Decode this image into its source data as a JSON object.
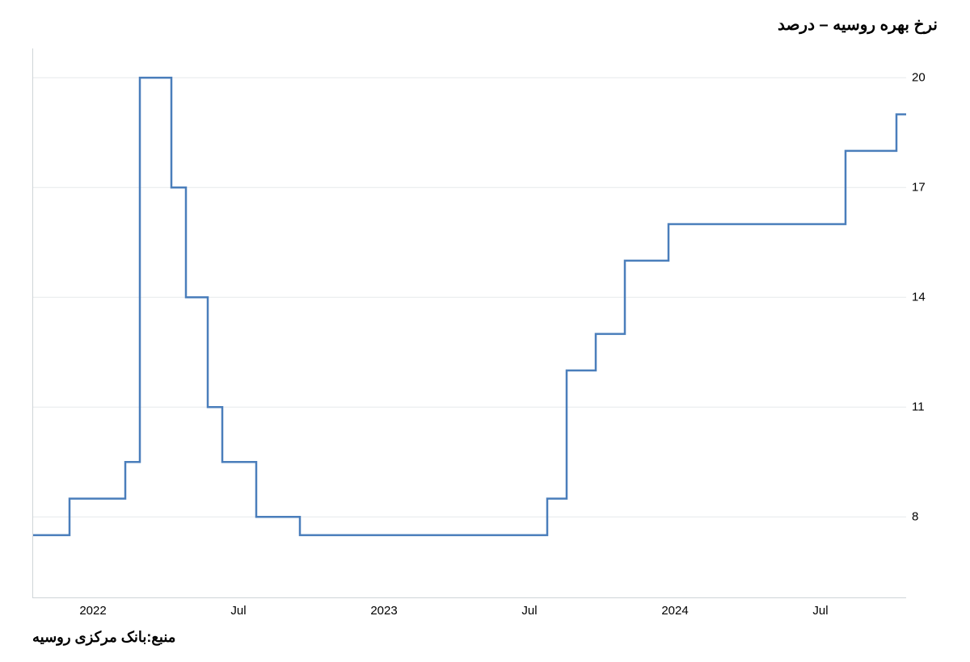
{
  "title": "نرخ بهره روسیه – درصد",
  "source": "منبع:بانک مرکزی روسیه",
  "chart": {
    "type": "step-line",
    "line_color": "#4a7ebb",
    "line_width": 2.5,
    "background_color": "#ffffff",
    "grid_color": "#e6e9eb",
    "axis_color": "#cfd4d8",
    "ylim": [
      5.8,
      20.8
    ],
    "xlim": [
      0,
      36
    ],
    "yticks": [
      8,
      11,
      14,
      17,
      20
    ],
    "xticks": [
      {
        "pos": 2.5,
        "label": "2022"
      },
      {
        "pos": 8.5,
        "label": "Jul"
      },
      {
        "pos": 14.5,
        "label": "2023"
      },
      {
        "pos": 20.5,
        "label": "Jul"
      },
      {
        "pos": 26.5,
        "label": "2024"
      },
      {
        "pos": 32.5,
        "label": "Jul"
      }
    ],
    "data": [
      {
        "x": 0,
        "y": 7.5
      },
      {
        "x": 1.5,
        "y": 7.5
      },
      {
        "x": 1.5,
        "y": 8.5
      },
      {
        "x": 3.8,
        "y": 8.5
      },
      {
        "x": 3.8,
        "y": 9.5
      },
      {
        "x": 4.4,
        "y": 9.5
      },
      {
        "x": 4.4,
        "y": 20
      },
      {
        "x": 5.7,
        "y": 20
      },
      {
        "x": 5.7,
        "y": 17
      },
      {
        "x": 6.3,
        "y": 17
      },
      {
        "x": 6.3,
        "y": 14
      },
      {
        "x": 7.2,
        "y": 14
      },
      {
        "x": 7.2,
        "y": 11
      },
      {
        "x": 7.8,
        "y": 11
      },
      {
        "x": 7.8,
        "y": 9.5
      },
      {
        "x": 9.2,
        "y": 9.5
      },
      {
        "x": 9.2,
        "y": 8
      },
      {
        "x": 11,
        "y": 8
      },
      {
        "x": 11,
        "y": 7.5
      },
      {
        "x": 21.2,
        "y": 7.5
      },
      {
        "x": 21.2,
        "y": 8.5
      },
      {
        "x": 22,
        "y": 8.5
      },
      {
        "x": 22,
        "y": 12
      },
      {
        "x": 23.2,
        "y": 12
      },
      {
        "x": 23.2,
        "y": 13
      },
      {
        "x": 24.4,
        "y": 13
      },
      {
        "x": 24.4,
        "y": 15
      },
      {
        "x": 26.2,
        "y": 15
      },
      {
        "x": 26.2,
        "y": 16
      },
      {
        "x": 33.5,
        "y": 16
      },
      {
        "x": 33.5,
        "y": 18
      },
      {
        "x": 35.6,
        "y": 18
      },
      {
        "x": 35.6,
        "y": 19
      },
      {
        "x": 36,
        "y": 19
      }
    ]
  }
}
